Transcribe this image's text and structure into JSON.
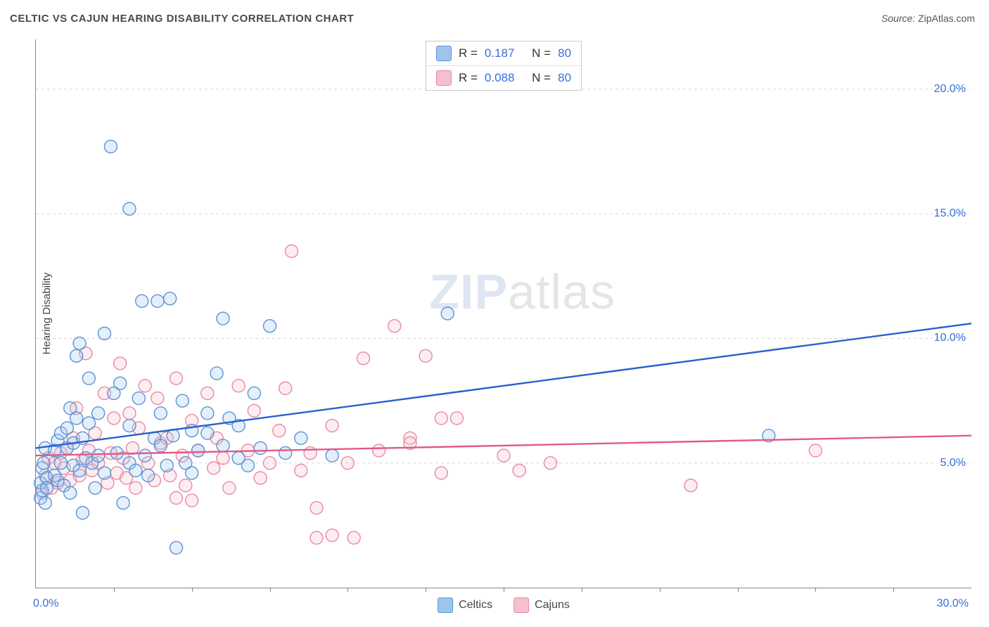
{
  "title": "CELTIC VS CAJUN HEARING DISABILITY CORRELATION CHART",
  "source_label": "Source:",
  "source_value": "ZipAtlas.com",
  "ylabel": "Hearing Disability",
  "watermark_a": "ZIP",
  "watermark_b": "atlas",
  "chart": {
    "type": "scatter",
    "xlim": [
      0,
      30
    ],
    "ylim": [
      0,
      22
    ],
    "background_color": "#ffffff",
    "grid_color": "#d8d8d8",
    "axis_color": "#888888",
    "tick_label_color": "#3a6fd8",
    "tick_label_fontsize": 16,
    "yticks": [
      5,
      10,
      15,
      20
    ],
    "ytick_labels": [
      "5.0%",
      "10.0%",
      "15.0%",
      "20.0%"
    ],
    "xtick_label_0": "0.0%",
    "xtick_label_max": "30.0%",
    "xticks_minor": [
      2.5,
      5,
      7.5,
      10,
      12.5,
      15,
      17.5,
      20,
      22.5,
      25,
      27.5
    ],
    "marker_radius": 9,
    "marker_stroke_width": 1.4,
    "marker_fill_opacity": 0.28,
    "trend_line_width": 2.4,
    "series": [
      {
        "name": "Celtics",
        "color_fill": "#9ec4ee",
        "color_stroke": "#5a94d6",
        "trend_color": "#2a5fd0",
        "R": "0.187",
        "N": "80",
        "trend": {
          "x1": 0,
          "y1": 5.6,
          "x2": 30,
          "y2": 10.6
        },
        "points": [
          [
            0.15,
            4.2
          ],
          [
            0.15,
            3.6
          ],
          [
            0.2,
            3.9
          ],
          [
            0.2,
            4.8
          ],
          [
            0.25,
            5.0
          ],
          [
            0.3,
            3.4
          ],
          [
            0.3,
            5.6
          ],
          [
            0.35,
            4.4
          ],
          [
            0.35,
            4.0
          ],
          [
            0.6,
            5.5
          ],
          [
            0.6,
            4.5
          ],
          [
            0.7,
            4.3
          ],
          [
            0.7,
            5.9
          ],
          [
            0.8,
            5.0
          ],
          [
            0.8,
            6.2
          ],
          [
            0.9,
            4.1
          ],
          [
            1.0,
            5.6
          ],
          [
            1.0,
            6.4
          ],
          [
            1.1,
            3.8
          ],
          [
            1.1,
            7.2
          ],
          [
            1.2,
            5.8
          ],
          [
            1.2,
            4.9
          ],
          [
            1.3,
            6.8
          ],
          [
            1.3,
            9.3
          ],
          [
            1.4,
            4.7
          ],
          [
            1.4,
            9.8
          ],
          [
            1.5,
            3.0
          ],
          [
            1.5,
            6.0
          ],
          [
            1.6,
            5.2
          ],
          [
            1.7,
            8.4
          ],
          [
            1.7,
            6.6
          ],
          [
            1.8,
            5.0
          ],
          [
            1.9,
            4.0
          ],
          [
            2.0,
            7.0
          ],
          [
            2.0,
            5.3
          ],
          [
            2.2,
            4.6
          ],
          [
            2.2,
            10.2
          ],
          [
            2.4,
            17.7
          ],
          [
            2.5,
            7.8
          ],
          [
            2.6,
            5.4
          ],
          [
            2.7,
            8.2
          ],
          [
            2.8,
            3.4
          ],
          [
            3.0,
            6.5
          ],
          [
            3.0,
            5.0
          ],
          [
            3.0,
            15.2
          ],
          [
            3.2,
            4.7
          ],
          [
            3.3,
            7.6
          ],
          [
            3.4,
            11.5
          ],
          [
            3.5,
            5.3
          ],
          [
            3.6,
            4.5
          ],
          [
            3.8,
            6.0
          ],
          [
            3.9,
            11.5
          ],
          [
            4.0,
            5.7
          ],
          [
            4.0,
            7.0
          ],
          [
            4.2,
            4.9
          ],
          [
            4.3,
            11.6
          ],
          [
            4.4,
            6.1
          ],
          [
            4.5,
            1.6
          ],
          [
            4.7,
            7.5
          ],
          [
            4.8,
            5.0
          ],
          [
            5.0,
            6.3
          ],
          [
            5.0,
            4.6
          ],
          [
            5.2,
            5.5
          ],
          [
            5.5,
            7.0
          ],
          [
            5.5,
            6.2
          ],
          [
            5.8,
            8.6
          ],
          [
            6.0,
            5.7
          ],
          [
            6.0,
            10.8
          ],
          [
            6.2,
            6.8
          ],
          [
            6.5,
            5.2
          ],
          [
            6.5,
            6.5
          ],
          [
            6.8,
            4.9
          ],
          [
            7.0,
            7.8
          ],
          [
            7.2,
            5.6
          ],
          [
            7.5,
            10.5
          ],
          [
            8.0,
            5.4
          ],
          [
            8.5,
            6.0
          ],
          [
            13.2,
            11.0
          ],
          [
            23.5,
            6.1
          ],
          [
            9.5,
            5.3
          ]
        ]
      },
      {
        "name": "Cajuns",
        "color_fill": "#f4c0cd",
        "color_stroke": "#e88aa3",
        "trend_color": "#e15a86",
        "R": "0.088",
        "N": "80",
        "trend": {
          "x1": 0,
          "y1": 5.3,
          "x2": 30,
          "y2": 6.1
        },
        "points": [
          [
            0.2,
            3.8
          ],
          [
            0.3,
            4.5
          ],
          [
            0.4,
            5.2
          ],
          [
            0.5,
            4.0
          ],
          [
            0.6,
            5.0
          ],
          [
            0.7,
            4.2
          ],
          [
            0.8,
            5.4
          ],
          [
            0.9,
            4.8
          ],
          [
            1.0,
            5.6
          ],
          [
            1.1,
            4.3
          ],
          [
            1.2,
            6.0
          ],
          [
            1.3,
            7.2
          ],
          [
            1.4,
            4.5
          ],
          [
            1.5,
            5.1
          ],
          [
            1.6,
            9.4
          ],
          [
            1.7,
            5.5
          ],
          [
            1.8,
            4.7
          ],
          [
            1.9,
            6.2
          ],
          [
            2.0,
            5.0
          ],
          [
            2.2,
            7.8
          ],
          [
            2.3,
            4.2
          ],
          [
            2.4,
            5.4
          ],
          [
            2.5,
            6.8
          ],
          [
            2.6,
            4.6
          ],
          [
            2.7,
            9.0
          ],
          [
            2.8,
            5.2
          ],
          [
            2.9,
            4.4
          ],
          [
            3.0,
            7.0
          ],
          [
            3.1,
            5.6
          ],
          [
            3.2,
            4.0
          ],
          [
            3.3,
            6.4
          ],
          [
            3.5,
            8.1
          ],
          [
            3.6,
            5.0
          ],
          [
            3.8,
            4.3
          ],
          [
            3.9,
            7.6
          ],
          [
            4.0,
            5.8
          ],
          [
            4.2,
            6.0
          ],
          [
            4.3,
            4.5
          ],
          [
            4.5,
            3.6
          ],
          [
            4.5,
            8.4
          ],
          [
            4.7,
            5.3
          ],
          [
            4.8,
            4.1
          ],
          [
            5.0,
            6.7
          ],
          [
            5.0,
            3.5
          ],
          [
            5.2,
            5.5
          ],
          [
            5.5,
            7.8
          ],
          [
            5.7,
            4.8
          ],
          [
            5.8,
            6.0
          ],
          [
            6.0,
            5.2
          ],
          [
            6.2,
            4.0
          ],
          [
            6.5,
            8.1
          ],
          [
            6.8,
            5.5
          ],
          [
            7.0,
            7.1
          ],
          [
            7.2,
            4.4
          ],
          [
            7.5,
            5.0
          ],
          [
            7.8,
            6.3
          ],
          [
            8.0,
            8.0
          ],
          [
            8.2,
            13.5
          ],
          [
            8.5,
            4.7
          ],
          [
            8.8,
            5.4
          ],
          [
            9.0,
            3.2
          ],
          [
            9.0,
            2.0
          ],
          [
            9.5,
            2.1
          ],
          [
            9.5,
            6.5
          ],
          [
            10.0,
            5.0
          ],
          [
            10.2,
            2.0
          ],
          [
            10.5,
            9.2
          ],
          [
            11.0,
            5.5
          ],
          [
            11.5,
            10.5
          ],
          [
            12.0,
            6.0
          ],
          [
            12.5,
            9.3
          ],
          [
            13.0,
            6.8
          ],
          [
            13.0,
            4.6
          ],
          [
            13.5,
            6.8
          ],
          [
            15.0,
            5.3
          ],
          [
            15.5,
            4.7
          ],
          [
            16.5,
            5.0
          ],
          [
            21.0,
            4.1
          ],
          [
            25.0,
            5.5
          ],
          [
            12.0,
            5.8
          ]
        ]
      }
    ],
    "legend_box": {
      "R_label": "R =",
      "N_label": "N ="
    },
    "bottom_legend": {
      "label_a": "Celtics",
      "label_b": "Cajuns"
    }
  }
}
